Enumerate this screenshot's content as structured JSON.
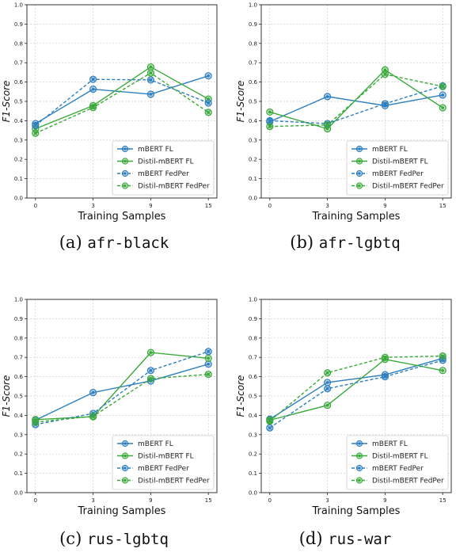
{
  "colors": {
    "blue": "#2e7fbf",
    "green": "#3aa93a",
    "grid": "#cfcfcf",
    "axis": "#222222"
  },
  "chart_data": [
    {
      "type": "line",
      "caption_prefix": "(a) ",
      "caption_code": "afr-black",
      "categories": [
        "0",
        "3",
        "9",
        "15"
      ],
      "xlabel": "Training Samples",
      "ylabel": "F1-Score",
      "ylim": [
        0.0,
        1.0
      ],
      "yticks": [
        "0.0",
        "0.1",
        "0.2",
        "0.3",
        "0.4",
        "0.5",
        "0.6",
        "0.7",
        "0.8",
        "0.9",
        "1.0"
      ],
      "grid": true,
      "legend_position": "bottom-right",
      "series": [
        {
          "name": "mBERT FL",
          "color": "blue",
          "dashed": false,
          "values": [
            0.385,
            0.563,
            0.537,
            0.632
          ]
        },
        {
          "name": "Distil-mBERT FL",
          "color": "green",
          "dashed": false,
          "values": [
            0.358,
            0.478,
            0.678,
            0.512
          ]
        },
        {
          "name": "mBERT FedPer",
          "color": "blue",
          "dashed": true,
          "values": [
            0.375,
            0.614,
            0.611,
            0.492
          ]
        },
        {
          "name": "Distil-mBERT FedPer",
          "color": "green",
          "dashed": true,
          "values": [
            0.335,
            0.468,
            0.647,
            0.443
          ]
        }
      ]
    },
    {
      "type": "line",
      "caption_prefix": "(b) ",
      "caption_code": "afr-lgbtq",
      "categories": [
        "0",
        "3",
        "9",
        "15"
      ],
      "xlabel": "Training Samples",
      "ylabel": "F1-Score",
      "ylim": [
        0.0,
        1.0
      ],
      "yticks": [
        "0.0",
        "0.1",
        "0.2",
        "0.3",
        "0.4",
        "0.5",
        "0.6",
        "0.7",
        "0.8",
        "0.9",
        "1.0"
      ],
      "grid": true,
      "legend_position": "bottom-right",
      "series": [
        {
          "name": "mBERT FL",
          "color": "blue",
          "dashed": false,
          "values": [
            0.395,
            0.525,
            0.478,
            0.533
          ]
        },
        {
          "name": "Distil-mBERT FL",
          "color": "green",
          "dashed": false,
          "values": [
            0.445,
            0.358,
            0.663,
            0.467
          ]
        },
        {
          "name": "mBERT FedPer",
          "color": "blue",
          "dashed": true,
          "values": [
            0.4,
            0.385,
            0.488,
            0.58
          ]
        },
        {
          "name": "Distil-mBERT FedPer",
          "color": "green",
          "dashed": true,
          "values": [
            0.37,
            0.378,
            0.64,
            0.577
          ]
        }
      ]
    },
    {
      "type": "line",
      "caption_prefix": "(c) ",
      "caption_code": "rus-lgbtq",
      "categories": [
        "0",
        "3",
        "9",
        "15"
      ],
      "xlabel": "Training Samples",
      "ylabel": "F1-Score",
      "ylim": [
        0.0,
        1.0
      ],
      "yticks": [
        "0.0",
        "0.1",
        "0.2",
        "0.3",
        "0.4",
        "0.5",
        "0.6",
        "0.7",
        "0.8",
        "0.9",
        "1.0"
      ],
      "grid": true,
      "legend_position": "bottom-right",
      "series": [
        {
          "name": "mBERT FL",
          "color": "blue",
          "dashed": false,
          "values": [
            0.375,
            0.518,
            0.578,
            0.665
          ]
        },
        {
          "name": "Distil-mBERT FL",
          "color": "green",
          "dashed": false,
          "values": [
            0.378,
            0.393,
            0.725,
            0.695
          ]
        },
        {
          "name": "mBERT FedPer",
          "color": "blue",
          "dashed": true,
          "values": [
            0.352,
            0.41,
            0.632,
            0.73
          ]
        },
        {
          "name": "Distil-mBERT FedPer",
          "color": "green",
          "dashed": true,
          "values": [
            0.365,
            0.395,
            0.59,
            0.612
          ]
        }
      ]
    },
    {
      "type": "line",
      "caption_prefix": "(d) ",
      "caption_code": "rus-war",
      "categories": [
        "0",
        "3",
        "9",
        "15"
      ],
      "xlabel": "Training Samples",
      "ylabel": "F1-Score",
      "ylim": [
        0.0,
        1.0
      ],
      "yticks": [
        "0.0",
        "0.1",
        "0.2",
        "0.3",
        "0.4",
        "0.5",
        "0.6",
        "0.7",
        "0.8",
        "0.9",
        "1.0"
      ],
      "grid": true,
      "legend_position": "bottom-right",
      "series": [
        {
          "name": "mBERT FL",
          "color": "blue",
          "dashed": false,
          "values": [
            0.38,
            0.57,
            0.61,
            0.695
          ]
        },
        {
          "name": "Distil-mBERT FL",
          "color": "green",
          "dashed": false,
          "values": [
            0.375,
            0.452,
            0.69,
            0.632
          ]
        },
        {
          "name": "mBERT FedPer",
          "color": "blue",
          "dashed": true,
          "values": [
            0.335,
            0.538,
            0.6,
            0.685
          ]
        },
        {
          "name": "Distil-mBERT FedPer",
          "color": "green",
          "dashed": true,
          "values": [
            0.37,
            0.62,
            0.7,
            0.707
          ]
        }
      ]
    }
  ]
}
